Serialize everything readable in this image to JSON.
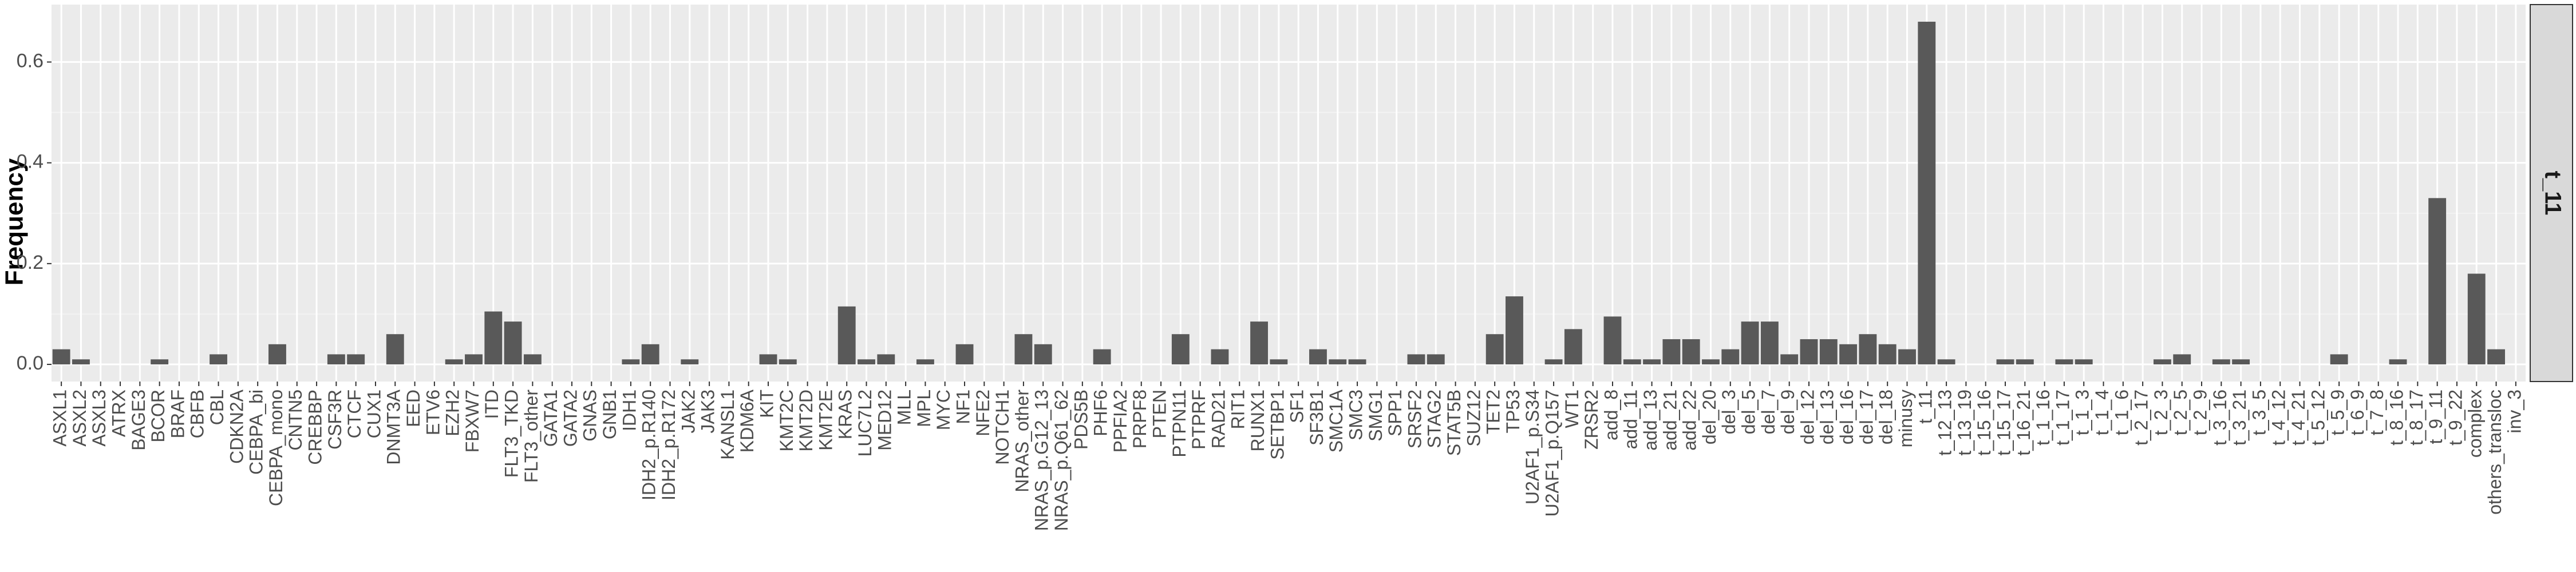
{
  "chart_data": {
    "type": "bar",
    "y_label": "Frequency",
    "facet_label": "t_11",
    "color": "#595959",
    "grid": true,
    "ylim": [
      -0.034,
      0.714
    ],
    "yticks": [
      {
        "value": 0,
        "label": "0.0"
      },
      0.2,
      0.4,
      0.6
    ],
    "categories": [
      "ASXL1",
      "ASXL2",
      "ASXL3",
      "ATRX",
      "BAGE3",
      "BCOR",
      "BRAF",
      "CBFB",
      "CBL",
      "CDKN2A",
      "CEBPA_bi",
      "CEBPA_mono",
      "CNTN5",
      "CREBBP",
      "CSF3R",
      "CTCF",
      "CUX1",
      "DNMT3A",
      "EED",
      "ETV6",
      "EZH2",
      "FBXW7",
      "ITD",
      "FLT3_TKD",
      "FLT3_other",
      "GATA1",
      "GATA2",
      "GNAS",
      "GNB1",
      "IDH1",
      "IDH2_p.R140",
      "IDH2_p.R172",
      "JAK2",
      "JAK3",
      "KANSL1",
      "KDM6A",
      "KIT",
      "KMT2C",
      "KMT2D",
      "KMT2E",
      "KRAS",
      "LUC7L2",
      "MED12",
      "MLL",
      "MPL",
      "MYC",
      "NF1",
      "NFE2",
      "NOTCH1",
      "NRAS_other",
      "NRAS_p.G12_13",
      "NRAS_p.Q61_62",
      "PDS5B",
      "PHF6",
      "PPFIA2",
      "PRPF8",
      "PTEN",
      "PTPN11",
      "PTPRF",
      "RAD21",
      "RIT1",
      "RUNX1",
      "SETBP1",
      "SF1",
      "SF3B1",
      "SMC1A",
      "SMC3",
      "SMG1",
      "SPP1",
      "SRSF2",
      "STAG2",
      "STAT5B",
      "SUZ12",
      "TET2",
      "TP53",
      "U2AF1_p.S34",
      "U2AF1_p.Q157",
      "WT1",
      "ZRSR2",
      "add_8",
      "add_11",
      "add_13",
      "add_21",
      "add_22",
      "del_20",
      "del_3",
      "del_5",
      "del_7",
      "del_9",
      "del_12",
      "del_13",
      "del_16",
      "del_17",
      "del_18",
      "minusy",
      "t_11",
      "t_12_13",
      "t_13_19",
      "t_15_16",
      "t_15_17",
      "t_16_21",
      "t_1_16",
      "t_1_17",
      "t_1_3",
      "t_1_4",
      "t_1_6",
      "t_2_17",
      "t_2_3",
      "t_2_5",
      "t_2_9",
      "t_3_16",
      "t_3_21",
      "t_3_5",
      "t_4_12",
      "t_4_21",
      "t_5_12",
      "t_5_9",
      "t_6_9",
      "t_7_8",
      "t_8_16",
      "t_8_17",
      "t_9_11",
      "t_9_22",
      "complex",
      "others_transloc",
      "inv_3"
    ],
    "values": [
      0.03,
      0.01,
      0,
      0,
      0,
      0.01,
      0,
      0,
      0.02,
      0,
      0,
      0.04,
      0,
      0,
      0.02,
      0.02,
      0,
      0.06,
      0,
      0,
      0.01,
      0.02,
      0.105,
      0.085,
      0.02,
      0,
      0,
      0,
      0,
      0.01,
      0.04,
      0,
      0.01,
      0,
      0,
      0,
      0.02,
      0.01,
      0,
      0,
      0.115,
      0.01,
      0.02,
      0,
      0.01,
      0,
      0.04,
      0,
      0,
      0.06,
      0.04,
      0,
      0,
      0.03,
      0,
      0,
      0,
      0.06,
      0,
      0.03,
      0,
      0.085,
      0.01,
      0,
      0.03,
      0.01,
      0.01,
      0,
      0,
      0.02,
      0.02,
      0,
      0,
      0.06,
      0.135,
      0,
      0.01,
      0.07,
      0,
      0.095,
      0.01,
      0.01,
      0.05,
      0.05,
      0.01,
      0.03,
      0.085,
      0.085,
      0.02,
      0.05,
      0.05,
      0.04,
      0.06,
      0.04,
      0.03,
      0.68,
      0.01,
      0,
      0,
      0.01,
      0.01,
      0,
      0.01,
      0.01,
      0,
      0,
      0,
      0.01,
      0.02,
      0,
      0.01,
      0.01,
      0,
      0,
      0,
      0,
      0.02,
      0,
      0,
      0.01,
      0,
      0.33,
      0,
      0.18,
      0.03,
      0
    ]
  }
}
